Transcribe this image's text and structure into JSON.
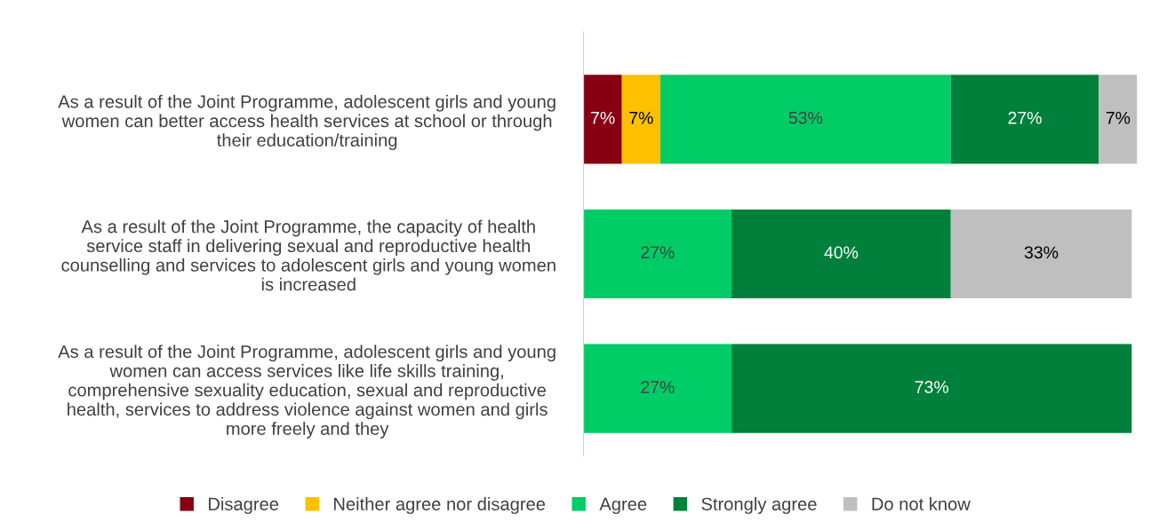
{
  "chart_data": {
    "type": "bar",
    "orientation": "horizontal",
    "stacked": true,
    "categories": [
      "As a result of the Joint Programme, adolescent girls and young\nwomen can better access health services at school or through\ntheir education/training",
      "As a result of the Joint Programme, the capacity of health\nservice staff in delivering sexual and reproductive health\ncounselling and services to adolescent girls and young women\nis increased",
      "As a result of the Joint Programme, adolescent girls and young\nwomen can access services like life skills training,\ncomprehensive sexuality education, sexual and reproductive\nhealth, services to address violence against women and girls\nmore freely and they"
    ],
    "series": [
      {
        "name": "Disagree",
        "color": "#870012",
        "values": [
          7,
          null,
          null
        ],
        "value_labels": [
          "7%",
          null,
          null
        ]
      },
      {
        "name": "Neither agree nor disagree",
        "color": "#ffc000",
        "values": [
          7,
          null,
          null
        ],
        "value_labels": [
          "7%",
          null,
          null
        ]
      },
      {
        "name": "Agree",
        "color": "#00cc66",
        "values": [
          53,
          27,
          27
        ],
        "value_labels": [
          "53%",
          "27%",
          "27%"
        ]
      },
      {
        "name": "Strongly agree",
        "color": "#00803b",
        "values": [
          27,
          40,
          73
        ],
        "value_labels": [
          "27%",
          "40%",
          "73%"
        ]
      },
      {
        "name": "Do not know",
        "color": "#bfbfbf",
        "values": [
          7,
          33,
          null
        ],
        "value_labels": [
          "7%",
          "33%",
          null
        ]
      }
    ],
    "tick_labels": "y",
    "legend": "bottom",
    "grid": false
  }
}
